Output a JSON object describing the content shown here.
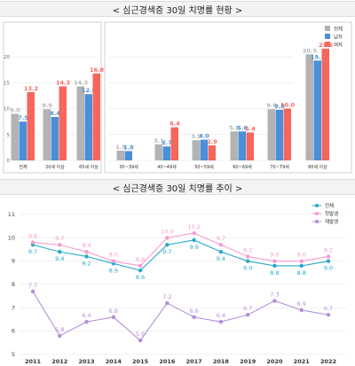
{
  "titles": {
    "top": "< 심근경색증 30일 치명률 현황 >",
    "bottom": "< 심근경색증 30일 치명률 추이 >"
  },
  "colors": {
    "total_bar": "#b3b3b3",
    "male_bar": "#4a8fd8",
    "female_bar": "#f5665d",
    "total_line": "#29a9c9",
    "first_line": "#f59ad2",
    "recur_line": "#b38ed8"
  },
  "chart_data": [
    {
      "type": "bar",
      "title": "< 심근경색증 30일 치명률 현황 >",
      "categories": [
        "전체",
        "20세 이상",
        "65세 이상",
        "30~39세",
        "40~49세",
        "50~59세",
        "60~69세",
        "70~79세",
        "80세 이상"
      ],
      "series": [
        {
          "name": "전체",
          "values": [
            9.0,
            9.9,
            14.3,
            1.9,
            3.1,
            3.9,
            5.6,
            9.9,
            20.5
          ]
        },
        {
          "name": "남자",
          "values": [
            7.5,
            8.4,
            12.8,
            1.8,
            2.7,
            4.0,
            5.6,
            9.8,
            19.3
          ]
        },
        {
          "name": "여자",
          "values": [
            13.2,
            14.3,
            16.8,
            null,
            6.4,
            2.9,
            5.4,
            10.0,
            21.6
          ]
        }
      ],
      "value_labels": [
        [
          "9.0",
          "9.9",
          "14.3",
          "1.9",
          "3.1",
          "3.9",
          "5.6",
          "9.9",
          "20.5"
        ],
        [
          "7.5",
          "8.4",
          "12.8",
          "1.8",
          "2.7",
          "4.0",
          "5.6",
          "9.8",
          "19.3"
        ],
        [
          "13.2",
          "14.3",
          "16.8",
          "",
          "6.4",
          "2.9",
          "5.4",
          "10.0",
          "21.6"
        ]
      ],
      "ylim": [
        0,
        25
      ],
      "yticks": [
        "0",
        "5",
        "10",
        "15",
        "20"
      ],
      "legend": [
        "전체",
        "남자",
        "여자"
      ],
      "legend_position": "top-right",
      "grid": true
    },
    {
      "type": "line",
      "title": "< 심근경색증 30일 치명률 추이 >",
      "x": [
        "2011",
        "2012",
        "2013",
        "2014",
        "2015",
        "2016",
        "2017",
        "2018",
        "2019",
        "2020",
        "2021",
        "2022"
      ],
      "series": [
        {
          "name": "전체",
          "values": [
            9.7,
            9.4,
            9.2,
            8.9,
            8.6,
            9.7,
            9.9,
            9.4,
            9.0,
            8.8,
            8.8,
            9.0
          ]
        },
        {
          "name": "첫발생",
          "values": [
            9.8,
            9.7,
            9.4,
            9.0,
            8.8,
            10.0,
            10.2,
            9.7,
            9.2,
            9.0,
            9.0,
            9.2
          ]
        },
        {
          "name": "재발생",
          "values": [
            7.7,
            5.8,
            6.4,
            6.6,
            5.6,
            7.2,
            6.6,
            6.4,
            6.7,
            7.3,
            6.9,
            6.7
          ]
        }
      ],
      "value_labels": [
        [
          "9.7",
          "9.4",
          "9.2",
          "8.9",
          "8.6",
          "9.7",
          "9.9",
          "9.4",
          "9.0",
          "8.8",
          "8.8",
          "9.0"
        ],
        [
          "9.8",
          "9.7",
          "9.4",
          "9.0",
          "8.8",
          "10.0",
          "10.2",
          "9.7",
          "9.2",
          "9.0",
          "9.0",
          "9.2"
        ],
        [
          "7.7",
          "5.8",
          "6.4",
          "6.6",
          "5.6",
          "7.2",
          "6.6",
          "6.4",
          "6.7",
          "7.3",
          "6.9",
          "6.7"
        ]
      ],
      "ylim": [
        5,
        11
      ],
      "yticks": [
        "5",
        "6",
        "7",
        "8",
        "9",
        "10",
        "11"
      ],
      "legend": [
        "전체",
        "첫발생",
        "재발생"
      ],
      "legend_position": "top-right",
      "grid": true
    }
  ]
}
